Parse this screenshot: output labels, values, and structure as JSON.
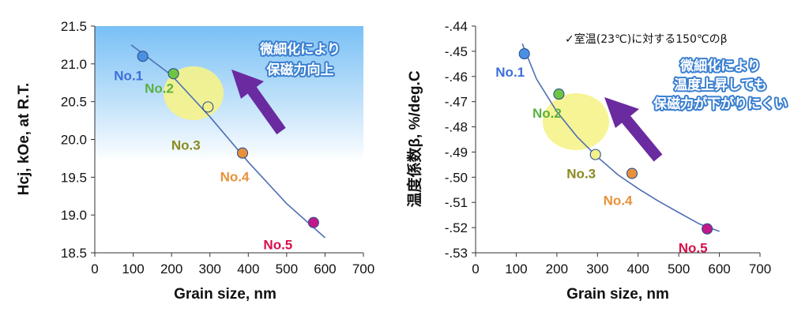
{
  "chart_data": [
    {
      "type": "scatter",
      "xlabel": "Grain size, nm",
      "ylabel": "Hcj, kOe, at R.T.",
      "xlim": [
        0,
        700
      ],
      "ylim": [
        18.5,
        21.5
      ],
      "xticks": [
        "0",
        "100",
        "200",
        "300",
        "400",
        "500",
        "600",
        "700"
      ],
      "yticks": [
        "21.5",
        "21.0",
        "20.5",
        "20.0",
        "19.5",
        "19.0",
        "18.5"
      ],
      "points": [
        {
          "label": "No.1",
          "x": 125,
          "y": 21.1,
          "color": "#4a90e2",
          "label_color": "#3b6fd8"
        },
        {
          "label": "No.2",
          "x": 205,
          "y": 20.87,
          "color": "#6cc644",
          "label_color": "#5cb040"
        },
        {
          "label": "No.3",
          "x": 295,
          "y": 20.43,
          "color": "#f4f08a",
          "label_color": "#8a8a20"
        },
        {
          "label": "No.4",
          "x": 385,
          "y": 19.82,
          "color": "#e8913a",
          "label_color": "#e8913a"
        },
        {
          "label": "No.5",
          "x": 570,
          "y": 18.9,
          "color": "#c2188a",
          "label_color": "#d8104a"
        }
      ],
      "trendline": [
        [
          95,
          21.25
        ],
        [
          200,
          20.85
        ],
        [
          300,
          20.3
        ],
        [
          400,
          19.7
        ],
        [
          500,
          19.15
        ],
        [
          600,
          18.7
        ]
      ],
      "annotation_lines": [
        "微細化により",
        "保磁力向上"
      ],
      "background": "blue-to-white vertical gradient"
    },
    {
      "type": "scatter",
      "xlabel": "Grain size, nm",
      "ylabel": "温度係数β, %/deg.C",
      "xlim": [
        0,
        700
      ],
      "ylim": [
        -0.53,
        -0.44
      ],
      "xticks": [
        "0",
        "100",
        "200",
        "300",
        "400",
        "500",
        "600",
        "700"
      ],
      "yticks": [
        "-.44",
        "-.45",
        "-.46",
        "-.47",
        "-.48",
        "-.49",
        "-.50",
        "-.51",
        "-.52",
        "-.53"
      ],
      "note": "✓室温(23℃)に対する150℃のβ",
      "points": [
        {
          "label": "No.1",
          "x": 120,
          "y": -0.451,
          "color": "#4a90e2",
          "label_color": "#3b6fd8"
        },
        {
          "label": "No.2",
          "x": 205,
          "y": -0.467,
          "color": "#6cc644",
          "label_color": "#5cb040"
        },
        {
          "label": "No.3",
          "x": 295,
          "y": -0.491,
          "color": "#f4f08a",
          "label_color": "#8a8a20"
        },
        {
          "label": "No.4",
          "x": 385,
          "y": -0.4985,
          "color": "#e8913a",
          "label_color": "#e8913a"
        },
        {
          "label": "No.5",
          "x": 570,
          "y": -0.5205,
          "color": "#c2188a",
          "label_color": "#d8104a"
        }
      ],
      "trendline": [
        [
          115,
          -0.447
        ],
        [
          150,
          -0.461
        ],
        [
          200,
          -0.474
        ],
        [
          250,
          -0.484
        ],
        [
          300,
          -0.492
        ],
        [
          350,
          -0.499
        ],
        [
          400,
          -0.5045
        ],
        [
          450,
          -0.5095
        ],
        [
          500,
          -0.514
        ],
        [
          550,
          -0.5185
        ],
        [
          600,
          -0.5215
        ]
      ],
      "annotation_lines": [
        "微細化により",
        "温度上昇しても",
        "保磁力が下がりにくい"
      ]
    }
  ],
  "colors": {
    "trendline": "#4f6fb3",
    "arrow": "#6a2aa0",
    "highlight": "#f6f38a",
    "annotation_stroke": "#3a7fd0"
  }
}
